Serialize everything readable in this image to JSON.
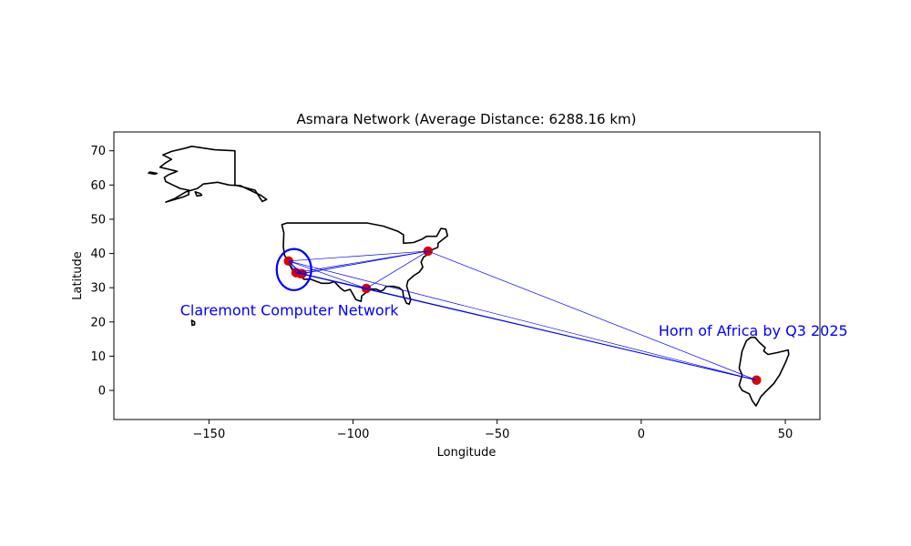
{
  "chart_data": {
    "type": "scatter",
    "title": "Asmara Network (Average Distance: 6288.16 km)",
    "xlabel": "Longitude",
    "ylabel": "Latitude",
    "xlim": [
      -183,
      62
    ],
    "ylim": [
      -8.5,
      75.5
    ],
    "xticks": [
      -150,
      -100,
      -50,
      0,
      50
    ],
    "xtick_labels": [
      "−150",
      "−100",
      "−50",
      "0",
      "50"
    ],
    "yticks": [
      0,
      10,
      20,
      30,
      40,
      50,
      60,
      70
    ],
    "ytick_labels": [
      "0",
      "10",
      "20",
      "30",
      "40",
      "50",
      "60",
      "70"
    ],
    "grid": false,
    "colors": {
      "nodes": "#dd0000",
      "edges": "#0000ff",
      "outline": "#000000",
      "annotation": "#0000ff"
    },
    "nodes": [
      {
        "lon": -122.4,
        "lat": 37.8
      },
      {
        "lon": -119.8,
        "lat": 34.4
      },
      {
        "lon": -118.2,
        "lat": 34.1
      },
      {
        "lon": -117.7,
        "lat": 34.1
      },
      {
        "lon": -95.4,
        "lat": 29.8
      },
      {
        "lon": -74.0,
        "lat": 40.7
      },
      {
        "lon": 40.0,
        "lat": 3.0
      }
    ],
    "edges": [
      [
        0,
        1
      ],
      [
        0,
        2
      ],
      [
        0,
        3
      ],
      [
        0,
        4
      ],
      [
        0,
        5
      ],
      [
        0,
        6
      ],
      [
        1,
        2
      ],
      [
        1,
        3
      ],
      [
        1,
        4
      ],
      [
        1,
        5
      ],
      [
        1,
        6
      ],
      [
        2,
        3
      ],
      [
        2,
        4
      ],
      [
        2,
        5
      ],
      [
        2,
        6
      ],
      [
        3,
        4
      ],
      [
        3,
        5
      ],
      [
        3,
        6
      ],
      [
        4,
        5
      ],
      [
        4,
        6
      ],
      [
        5,
        6
      ]
    ],
    "highlight_ellipse": {
      "center_lon": -120.5,
      "center_lat": 35.3,
      "width_lon": 12,
      "height_lat": 12
    },
    "annotations": [
      {
        "text": "Claremont Computer Network",
        "lon": -160,
        "lat": 22
      },
      {
        "text": "Horn of Africa by Q3 2025",
        "lon": 6,
        "lat": 16
      }
    ],
    "regions": [
      {
        "name": "alaska",
        "points": [
          [
            -141,
            70
          ],
          [
            -141,
            60
          ],
          [
            -138,
            59.4
          ],
          [
            -136,
            58.9
          ],
          [
            -134,
            58.5
          ],
          [
            -131.5,
            55.2
          ],
          [
            -130,
            55.8
          ],
          [
            -132,
            57
          ],
          [
            -135,
            58.2
          ],
          [
            -139,
            59.8
          ],
          [
            -143,
            60
          ],
          [
            -147,
            60.8
          ],
          [
            -152,
            60.3
          ],
          [
            -154,
            59
          ],
          [
            -158,
            58
          ],
          [
            -162,
            56
          ],
          [
            -165,
            55
          ],
          [
            -163,
            55.5
          ],
          [
            -159,
            56.5
          ],
          [
            -157,
            57.2
          ],
          [
            -157,
            58.5
          ],
          [
            -160,
            59
          ],
          [
            -162.5,
            60
          ],
          [
            -165,
            61
          ],
          [
            -165.5,
            62.2
          ],
          [
            -164,
            63
          ],
          [
            -161,
            64
          ],
          [
            -164,
            64.6
          ],
          [
            -167,
            65.2
          ],
          [
            -165,
            66.5
          ],
          [
            -163,
            67.5
          ],
          [
            -166,
            68.8
          ],
          [
            -163,
            69.8
          ],
          [
            -158,
            70.8
          ],
          [
            -156,
            71.3
          ],
          [
            -152,
            70.8
          ],
          [
            -148,
            70.3
          ],
          [
            -141,
            70
          ]
        ]
      },
      {
        "name": "conus",
        "points": [
          [
            -123,
            48.9
          ],
          [
            -95,
            48.9
          ],
          [
            -89.5,
            48
          ],
          [
            -84.5,
            46.5
          ],
          [
            -82.5,
            45.5
          ],
          [
            -82.5,
            43
          ],
          [
            -79,
            43.2
          ],
          [
            -76,
            44.2
          ],
          [
            -74.5,
            45
          ],
          [
            -71,
            45
          ],
          [
            -69.5,
            47.3
          ],
          [
            -67.8,
            47.1
          ],
          [
            -67.2,
            45.2
          ],
          [
            -69,
            44
          ],
          [
            -70.5,
            43
          ],
          [
            -70.6,
            41.8
          ],
          [
            -72,
            41.3
          ],
          [
            -74,
            40.6
          ],
          [
            -74.5,
            39.5
          ],
          [
            -75.5,
            39
          ],
          [
            -76.4,
            37.5
          ],
          [
            -75.8,
            36
          ],
          [
            -77,
            34.6
          ],
          [
            -79,
            33.5
          ],
          [
            -81,
            32
          ],
          [
            -81.4,
            30.5
          ],
          [
            -80.5,
            28
          ],
          [
            -80,
            26.5
          ],
          [
            -80.5,
            25.2
          ],
          [
            -81.5,
            25.5
          ],
          [
            -82.5,
            27.5
          ],
          [
            -82.8,
            29.2
          ],
          [
            -84,
            30
          ],
          [
            -86,
            30.4
          ],
          [
            -88.5,
            30.4
          ],
          [
            -89.5,
            29.3
          ],
          [
            -90.5,
            29
          ],
          [
            -92,
            29.6
          ],
          [
            -94,
            29.6
          ],
          [
            -95.2,
            28.8
          ],
          [
            -97,
            27.6
          ],
          [
            -97.2,
            26
          ],
          [
            -99,
            26.5
          ],
          [
            -101,
            29.5
          ],
          [
            -103,
            29
          ],
          [
            -104.5,
            30
          ],
          [
            -106.5,
            31.8
          ],
          [
            -108.2,
            31.3
          ],
          [
            -111,
            31.3
          ],
          [
            -114.8,
            32.5
          ],
          [
            -117.1,
            32.5
          ],
          [
            -118.5,
            34
          ],
          [
            -120.6,
            34.5
          ],
          [
            -121.9,
            36.5
          ],
          [
            -122.5,
            37.7
          ],
          [
            -123.8,
            39.5
          ],
          [
            -124.2,
            42
          ],
          [
            -124,
            46
          ],
          [
            -124.7,
            48.4
          ],
          [
            -123,
            48.9
          ]
        ]
      },
      {
        "name": "hawaii",
        "points": [
          [
            -156,
            20.5
          ],
          [
            -155,
            20
          ],
          [
            -155,
            19.2
          ],
          [
            -155.8,
            19
          ],
          [
            -156,
            20.5
          ]
        ]
      },
      {
        "name": "horn-of-africa",
        "points": [
          [
            36.5,
            14.5
          ],
          [
            38,
            15.5
          ],
          [
            39.5,
            15.5
          ],
          [
            41,
            14
          ],
          [
            43,
            12.5
          ],
          [
            42.5,
            11.5
          ],
          [
            44,
            10.5
          ],
          [
            47,
            11
          ],
          [
            51,
            11.8
          ],
          [
            51.2,
            10.5
          ],
          [
            50,
            8
          ],
          [
            48,
            4.5
          ],
          [
            46,
            2
          ],
          [
            43,
            -0.5
          ],
          [
            41.5,
            -1.8
          ],
          [
            40.5,
            -3.5
          ],
          [
            39.8,
            -4.5
          ],
          [
            38.5,
            -3
          ],
          [
            37.5,
            -1
          ],
          [
            35,
            0
          ],
          [
            34,
            1.5
          ],
          [
            35,
            4.5
          ],
          [
            34,
            6.5
          ],
          [
            34.5,
            9
          ],
          [
            35,
            11.5
          ],
          [
            36.5,
            14.5
          ]
        ]
      },
      {
        "name": "islands-west",
        "points": [
          [
            -170.5,
            63.8
          ],
          [
            -168,
            63.4
          ],
          [
            -169,
            63.2
          ],
          [
            -171,
            63.5
          ],
          [
            -170.5,
            63.8
          ]
        ]
      },
      {
        "name": "islands-south",
        "points": [
          [
            -154.8,
            58.0
          ],
          [
            -153,
            57.5
          ],
          [
            -152.5,
            57.0
          ],
          [
            -154.2,
            56.8
          ],
          [
            -154.8,
            58.0
          ]
        ]
      }
    ]
  }
}
